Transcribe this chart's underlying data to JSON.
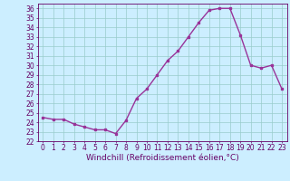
{
  "x": [
    0,
    1,
    2,
    3,
    4,
    5,
    6,
    7,
    8,
    9,
    10,
    11,
    12,
    13,
    14,
    15,
    16,
    17,
    18,
    19,
    20,
    21,
    22,
    23
  ],
  "y": [
    24.5,
    24.3,
    24.3,
    23.8,
    23.5,
    23.2,
    23.2,
    22.8,
    24.2,
    26.5,
    27.5,
    29.0,
    30.5,
    31.5,
    33.0,
    34.5,
    35.8,
    36.0,
    36.0,
    33.2,
    30.0,
    29.7,
    30.0,
    27.5
  ],
  "line_color": "#993399",
  "marker": "s",
  "marker_size": 2,
  "bg_color": "#cceeff",
  "grid_color": "#99cccc",
  "xlabel": "Windchill (Refroidissement éolien,°C)",
  "ylabel": "",
  "xlim": [
    -0.5,
    23.5
  ],
  "ylim": [
    22,
    36.5
  ],
  "yticks": [
    22,
    23,
    24,
    25,
    26,
    27,
    28,
    29,
    30,
    31,
    32,
    33,
    34,
    35,
    36
  ],
  "xticks": [
    0,
    1,
    2,
    3,
    4,
    5,
    6,
    7,
    8,
    9,
    10,
    11,
    12,
    13,
    14,
    15,
    16,
    17,
    18,
    19,
    20,
    21,
    22,
    23
  ],
  "tick_fontsize": 5.5,
  "xlabel_fontsize": 6.5,
  "line_width": 1.0
}
